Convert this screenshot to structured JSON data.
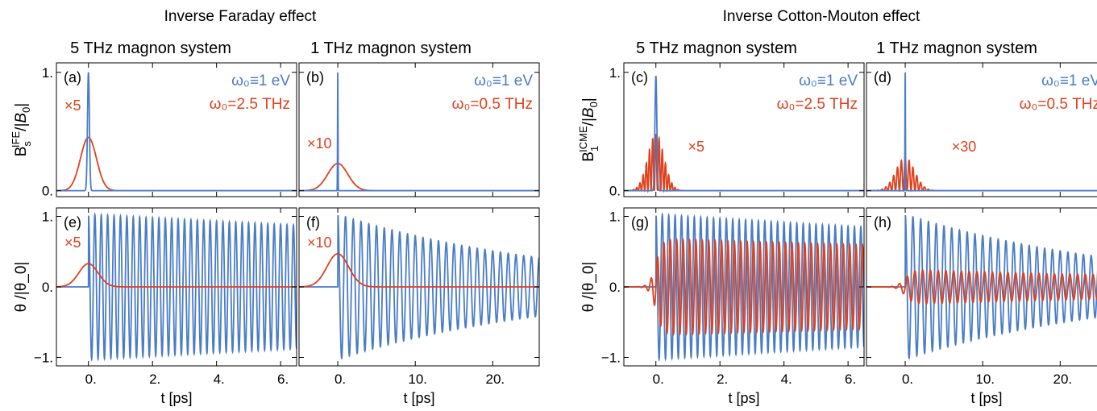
{
  "section_titles": [
    "Inverse Faraday effect",
    "Inverse Cotton-Mouton effect"
  ],
  "column_titles": [
    "5 THz magnon system",
    "1 THz magnon system",
    "5 THz magnon system",
    "1 THz magnon system"
  ],
  "colors": {
    "blue": "#4a7cc7",
    "red": "#e0401c"
  },
  "chart_data": [
    {
      "panel": "a",
      "type": "line",
      "label": "(a)",
      "effect": "IFE",
      "row": "pulse",
      "xlim": [
        -1.0,
        6.5
      ],
      "ylim": [
        -0.05,
        1.08
      ],
      "x_ticks": [
        0,
        2,
        4,
        6
      ],
      "x_ticklabels": [],
      "y_ticks": [
        0,
        1
      ],
      "y_ticklabels": [
        "0.",
        "1."
      ],
      "ylabel": "B_s^IFE/|B_0|",
      "xlabel": "",
      "legend": [
        "ω₀≡1 eV",
        "ω₀=2.5 THz"
      ],
      "annotation": "×5",
      "series": [
        {
          "name": "ω₀≡1 eV",
          "color": "blue",
          "kind": "gauss",
          "center": 0,
          "amp": 1.0,
          "width": 0.03
        },
        {
          "name": "ω₀=2.5 THz",
          "color": "red",
          "kind": "gauss",
          "center": 0,
          "amp": 0.45,
          "width": 0.25
        }
      ]
    },
    {
      "panel": "b",
      "type": "line",
      "label": "(b)",
      "effect": "IFE",
      "row": "pulse",
      "xlim": [
        -5,
        26
      ],
      "ylim": [
        -0.05,
        1.08
      ],
      "x_ticks": [
        0,
        10,
        20
      ],
      "x_ticklabels": [],
      "y_ticks": [
        0,
        1
      ],
      "y_ticklabels": [],
      "ylabel": "",
      "xlabel": "",
      "legend": [
        "ω₀≡1 eV",
        "ω₀=0.5 THz"
      ],
      "annotation": "×10",
      "series": [
        {
          "name": "ω₀≡1 eV",
          "color": "blue",
          "kind": "gauss",
          "center": 0,
          "amp": 1.0,
          "width": 0.03
        },
        {
          "name": "ω₀=0.5 THz",
          "color": "red",
          "kind": "gauss",
          "center": 0,
          "amp": 0.23,
          "width": 1.3
        }
      ]
    },
    {
      "panel": "c",
      "type": "line",
      "label": "(c)",
      "effect": "ICME",
      "row": "pulse",
      "xlim": [
        -1.0,
        6.5
      ],
      "ylim": [
        -0.05,
        1.08
      ],
      "x_ticks": [
        0,
        2,
        4,
        6
      ],
      "x_ticklabels": [],
      "y_ticks": [
        0,
        1
      ],
      "y_ticklabels": [
        "0.",
        "1."
      ],
      "ylabel": "B_1^ICME/|B_0|",
      "xlabel": "",
      "legend": [
        "ω₀≡1 eV",
        "ω₀=2.5 THz"
      ],
      "annotation": "×5",
      "series": [
        {
          "name": "ω₀≡1 eV",
          "color": "blue",
          "kind": "gauss",
          "center": 0,
          "amp": 0.97,
          "width": 0.03
        },
        {
          "name": "ω₀=2.5 THz",
          "color": "red",
          "kind": "osc-gauss",
          "center": 0,
          "amp": 0.48,
          "width": 0.25,
          "freq": 5.0
        }
      ]
    },
    {
      "panel": "d",
      "type": "line",
      "label": "(d)",
      "effect": "ICME",
      "row": "pulse",
      "xlim": [
        -5,
        26
      ],
      "ylim": [
        -0.05,
        1.08
      ],
      "x_ticks": [
        0,
        10,
        20
      ],
      "x_ticklabels": [],
      "y_ticks": [
        0,
        1
      ],
      "y_ticklabels": [],
      "ylabel": "",
      "xlabel": "",
      "legend": [
        "ω₀≡1 eV",
        "ω₀=0.5 THz"
      ],
      "annotation": "×30",
      "series": [
        {
          "name": "ω₀≡1 eV",
          "color": "blue",
          "kind": "gauss",
          "center": 0,
          "amp": 1.0,
          "width": 0.03
        },
        {
          "name": "ω₀=0.5 THz",
          "color": "red",
          "kind": "osc-gauss",
          "center": 0,
          "amp": 0.28,
          "width": 1.2,
          "freq": 1.0
        }
      ]
    },
    {
      "panel": "e",
      "type": "line",
      "label": "(e)",
      "effect": "IFE",
      "row": "response",
      "xlim": [
        -1.0,
        6.5
      ],
      "ylim": [
        -1.12,
        1.12
      ],
      "x_ticks": [
        0,
        2,
        4,
        6
      ],
      "x_ticklabels": [
        "0.",
        "2.",
        "4.",
        "6."
      ],
      "y_ticks": [
        -1,
        0,
        1
      ],
      "y_ticklabels": [
        "−1.",
        "0.",
        "1."
      ],
      "ylabel": "θ /|θ_0|",
      "xlabel": "t [ps]",
      "legend": [],
      "annotation": "×5",
      "series": [
        {
          "name": "ω₀≡1 eV",
          "color": "blue",
          "kind": "sine",
          "amp": 1.03,
          "freq": 5.0,
          "decay": 0.025
        },
        {
          "name": "ω₀=2.5 THz",
          "color": "red",
          "kind": "gauss",
          "center": 0,
          "amp": 0.33,
          "width": 0.3
        }
      ]
    },
    {
      "panel": "f",
      "type": "line",
      "label": "(f)",
      "effect": "IFE",
      "row": "response",
      "xlim": [
        -5,
        26
      ],
      "ylim": [
        -1.12,
        1.12
      ],
      "x_ticks": [
        0,
        10,
        20
      ],
      "x_ticklabels": [
        "0.",
        "10.",
        "20."
      ],
      "y_ticks": [
        -1,
        0,
        1
      ],
      "y_ticklabels": [],
      "ylabel": "",
      "xlabel": "t [ps]",
      "legend": [],
      "annotation": "×10",
      "series": [
        {
          "name": "ω₀≡1 eV",
          "color": "blue",
          "kind": "sine",
          "amp": 1.03,
          "freq": 1.0,
          "decay": 0.035
        },
        {
          "name": "ω₀=0.5 THz",
          "color": "red",
          "kind": "gauss",
          "center": 0,
          "amp": 0.47,
          "width": 1.4
        }
      ]
    },
    {
      "panel": "g",
      "type": "line",
      "label": "(g)",
      "effect": "ICME",
      "row": "response",
      "xlim": [
        -1.0,
        6.5
      ],
      "ylim": [
        -1.12,
        1.12
      ],
      "x_ticks": [
        0,
        2,
        4,
        6
      ],
      "x_ticklabels": [
        "0.",
        "2.",
        "4.",
        "6."
      ],
      "y_ticks": [
        -1,
        0,
        1
      ],
      "y_ticklabels": [
        "−1.",
        "0.",
        "1."
      ],
      "ylabel": "θ /|θ_0|",
      "xlabel": "t [ps]",
      "legend": [],
      "annotation": "",
      "series": [
        {
          "name": "ω₀≡1 eV",
          "color": "blue",
          "kind": "sine",
          "amp": 1.03,
          "freq": 5.0,
          "decay": 0.03
        },
        {
          "name": "ω₀=2.5 THz",
          "color": "red",
          "kind": "sine-ramp",
          "amp": 0.68,
          "freq": 5.0,
          "decay": 0.02,
          "rise": 0.3
        }
      ]
    },
    {
      "panel": "h",
      "type": "line",
      "label": "(h)",
      "effect": "ICME",
      "row": "response",
      "xlim": [
        -5,
        26
      ],
      "ylim": [
        -1.12,
        1.12
      ],
      "x_ticks": [
        0,
        10,
        20
      ],
      "x_ticklabels": [
        "0.",
        "10.",
        "20."
      ],
      "y_ticks": [
        -1,
        0,
        1
      ],
      "y_ticklabels": [],
      "ylabel": "",
      "xlabel": "t [ps]",
      "legend": [],
      "annotation": "",
      "series": [
        {
          "name": "ω₀≡1 eV",
          "color": "blue",
          "kind": "sine",
          "amp": 1.03,
          "freq": 1.0,
          "decay": 0.035
        },
        {
          "name": "ω₀=0.5 THz",
          "color": "red",
          "kind": "sine-ramp",
          "amp": 0.25,
          "freq": 1.0,
          "decay": 0.015,
          "rise": 1.5
        }
      ]
    }
  ]
}
